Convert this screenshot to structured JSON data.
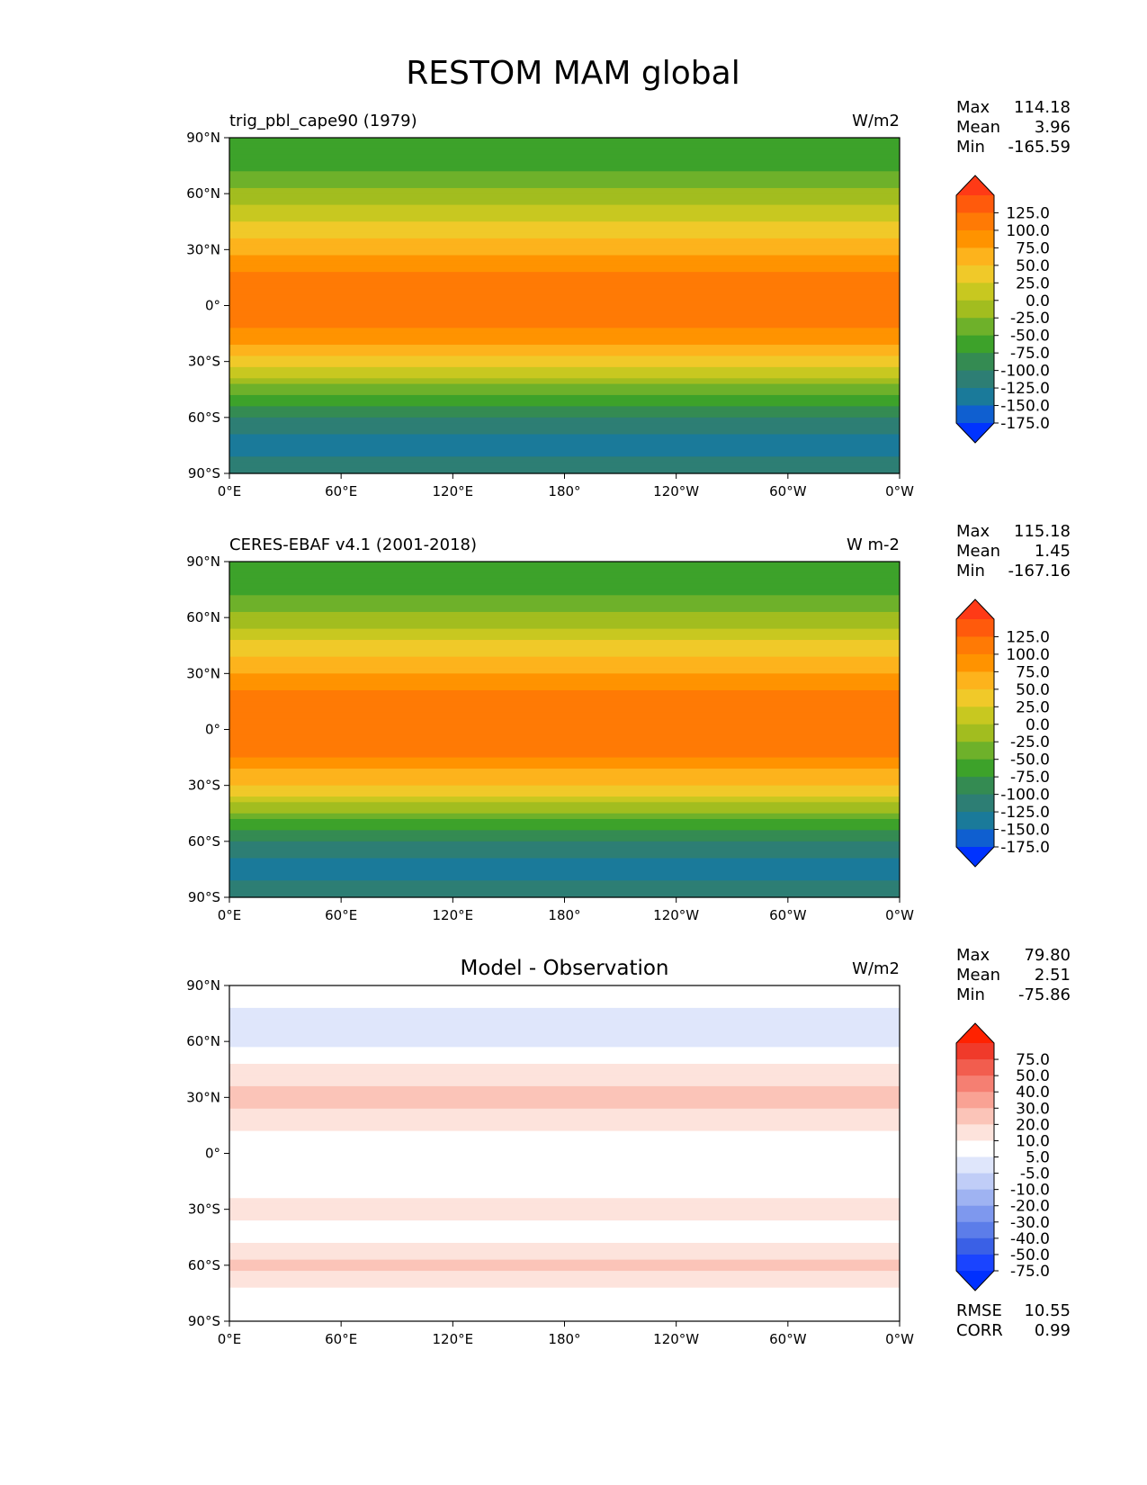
{
  "figure": {
    "title": "RESTOM MAM global"
  },
  "axes": {
    "x_ticks": [
      "0°E",
      "60°E",
      "120°E",
      "180°",
      "120°W",
      "60°W",
      "0°W"
    ],
    "y_ticks": [
      "90°N",
      "60°N",
      "30°N",
      "0°",
      "30°S",
      "60°S",
      "90°S"
    ]
  },
  "chart_data": [
    {
      "type": "heatmap",
      "title": "trig_pbl_cape90 (1979)",
      "units": "W/m2",
      "stats": {
        "max_label": "Max",
        "max": "114.18",
        "mean_label": "Mean",
        "mean": "3.96",
        "min_label": "Min",
        "min": "-165.59"
      },
      "xlim": [
        0,
        360
      ],
      "ylim": [
        -90,
        90
      ],
      "colorbar_labels": [
        "125.0",
        "100.0",
        "75.0",
        "50.0",
        "25.0",
        "0.0",
        "-25.0",
        "-50.0",
        "-75.0",
        "-100.0",
        "-125.0",
        "-150.0",
        "-175.0"
      ],
      "colorbar_colors": [
        "#ff3a16",
        "#ff5a0c",
        "#ff7a05",
        "#ff9300",
        "#fdb31c",
        "#f0c929",
        "#c8c820",
        "#a2bd1f",
        "#6eb12a",
        "#3da22a",
        "#348b52",
        "#2d7e74",
        "#1a7a9a",
        "#0f5fd0",
        "#0033ff"
      ],
      "zonal_profile": {
        "lat": [
          90,
          75,
          60,
          45,
          30,
          15,
          0,
          -15,
          -30,
          -45,
          -60,
          -75,
          -90
        ],
        "value": [
          -100,
          -80,
          -45,
          0,
          45,
          85,
          90,
          70,
          20,
          -60,
          -125,
          -165,
          -130
        ]
      }
    },
    {
      "type": "heatmap",
      "title": "CERES-EBAF v4.1 (2001-2018)",
      "units": "W m-2",
      "stats": {
        "max_label": "Max",
        "max": "115.18",
        "mean_label": "Mean",
        "mean": "1.45",
        "min_label": "Min",
        "min": "-167.16"
      },
      "xlim": [
        0,
        360
      ],
      "ylim": [
        -90,
        90
      ],
      "colorbar_labels": [
        "125.0",
        "100.0",
        "75.0",
        "50.0",
        "25.0",
        "0.0",
        "-25.0",
        "-50.0",
        "-75.0",
        "-100.0",
        "-125.0",
        "-150.0",
        "-175.0"
      ],
      "colorbar_colors": [
        "#ff3a16",
        "#ff5a0c",
        "#ff7a05",
        "#ff9300",
        "#fdb31c",
        "#f0c929",
        "#c8c820",
        "#a2bd1f",
        "#6eb12a",
        "#3da22a",
        "#348b52",
        "#2d7e74",
        "#1a7a9a",
        "#0f5fd0",
        "#0033ff"
      ],
      "zonal_profile": {
        "lat": [
          90,
          75,
          60,
          45,
          30,
          15,
          0,
          -15,
          -30,
          -45,
          -60,
          -75,
          -90
        ],
        "value": [
          -100,
          -85,
          -40,
          5,
          55,
          90,
          95,
          75,
          25,
          -55,
          -130,
          -168,
          -130
        ]
      }
    },
    {
      "type": "heatmap",
      "title": "Model - Observation",
      "units": "W/m2",
      "stats": {
        "max_label": "Max",
        "max": "79.80",
        "mean_label": "Mean",
        "mean": "2.51",
        "min_label": "Min",
        "min": "-75.86"
      },
      "extra_stats": {
        "rmse_label": "RMSE",
        "rmse": "10.55",
        "corr_label": "CORR",
        "corr": "0.99"
      },
      "xlim": [
        0,
        360
      ],
      "ylim": [
        -90,
        90
      ],
      "colorbar_labels": [
        "75.0",
        "50.0",
        "40.0",
        "30.0",
        "20.0",
        "10.0",
        "5.0",
        "-5.0",
        "-10.0",
        "-20.0",
        "-30.0",
        "-40.0",
        "-50.0",
        "-75.0"
      ],
      "colorbar_colors": [
        "#ff2200",
        "#f03a2a",
        "#f25d4e",
        "#f57f72",
        "#f9a294",
        "#fbc4b8",
        "#fde3dc",
        "#ffffff",
        "#dfe6fb",
        "#c0cdf7",
        "#9fb3f2",
        "#7e98ee",
        "#5c7de9",
        "#3a60e6",
        "#1a44ff",
        "#0030ff"
      ],
      "zonal_profile": {
        "lat": [
          90,
          75,
          60,
          45,
          30,
          15,
          0,
          -15,
          -30,
          -45,
          -60,
          -75,
          -90
        ],
        "value": [
          0,
          -6,
          -8,
          8,
          12,
          6,
          -3,
          4,
          6,
          3,
          12,
          4,
          0
        ]
      }
    }
  ]
}
